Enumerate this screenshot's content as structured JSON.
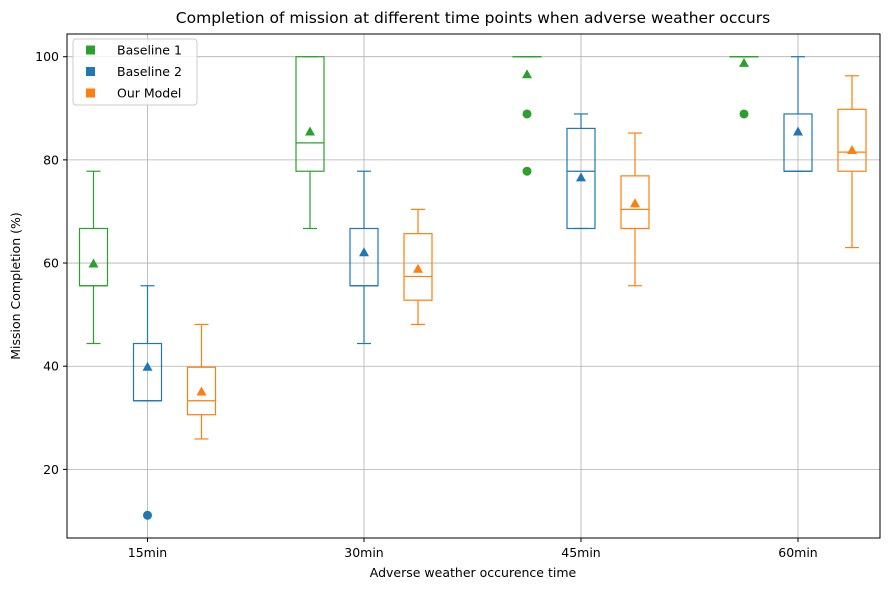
{
  "chart_data": {
    "type": "box",
    "title": "Completion of mission at different time points when adverse weather occurs",
    "xlabel": "Adverse weather occurence time",
    "ylabel": "Mission Completion (%)",
    "categories": [
      "15min",
      "30min",
      "45min",
      "60min"
    ],
    "yticks": [
      20,
      40,
      60,
      80,
      100
    ],
    "ylim": [
      6.7,
      104.4
    ],
    "grid": true,
    "legend_position": "top-left",
    "series": [
      {
        "name": "Baseline 1",
        "color": "#2ca02c",
        "boxes": [
          {
            "whisker_low": 44.4,
            "q1": 55.6,
            "median": 55.6,
            "q3": 66.7,
            "whisker_high": 77.8,
            "mean": 60.0,
            "outliers": []
          },
          {
            "whisker_low": 66.7,
            "q1": 77.8,
            "median": 83.3,
            "q3": 100.0,
            "whisker_high": 100.0,
            "mean": 85.6,
            "outliers": []
          },
          {
            "whisker_low": 100.0,
            "q1": 100.0,
            "median": 100.0,
            "q3": 100.0,
            "whisker_high": 100.0,
            "mean": 96.7,
            "outliers": [
              88.9,
              77.8
            ]
          },
          {
            "whisker_low": 100.0,
            "q1": 100.0,
            "median": 100.0,
            "q3": 100.0,
            "whisker_high": 100.0,
            "mean": 98.9,
            "outliers": [
              88.9
            ]
          }
        ]
      },
      {
        "name": "Baseline 2",
        "color": "#1f77b4",
        "boxes": [
          {
            "whisker_low": 33.3,
            "q1": 33.3,
            "median": 33.3,
            "q3": 44.4,
            "whisker_high": 55.6,
            "mean": 40.0,
            "outliers": [
              11.1
            ]
          },
          {
            "whisker_low": 44.4,
            "q1": 55.6,
            "median": 55.6,
            "q3": 66.7,
            "whisker_high": 77.8,
            "mean": 62.2,
            "outliers": []
          },
          {
            "whisker_low": 66.7,
            "q1": 66.7,
            "median": 77.8,
            "q3": 86.1,
            "whisker_high": 88.9,
            "mean": 76.7,
            "outliers": []
          },
          {
            "whisker_low": 77.8,
            "q1": 77.8,
            "median": 77.8,
            "q3": 88.9,
            "whisker_high": 100.0,
            "mean": 85.6,
            "outliers": []
          }
        ]
      },
      {
        "name": "Our Model",
        "color": "#ff7f0e",
        "boxes": [
          {
            "whisker_low": 25.9,
            "q1": 30.6,
            "median": 33.3,
            "q3": 39.8,
            "whisker_high": 48.1,
            "mean": 35.2,
            "outliers": []
          },
          {
            "whisker_low": 48.1,
            "q1": 52.8,
            "median": 57.4,
            "q3": 65.7,
            "whisker_high": 70.4,
            "mean": 59.0,
            "outliers": []
          },
          {
            "whisker_low": 55.6,
            "q1": 66.7,
            "median": 70.4,
            "q3": 76.9,
            "whisker_high": 85.2,
            "mean": 71.7,
            "outliers": []
          },
          {
            "whisker_low": 63.0,
            "q1": 77.8,
            "median": 81.5,
            "q3": 89.8,
            "whisker_high": 96.3,
            "mean": 82.0,
            "outliers": []
          }
        ]
      }
    ]
  }
}
